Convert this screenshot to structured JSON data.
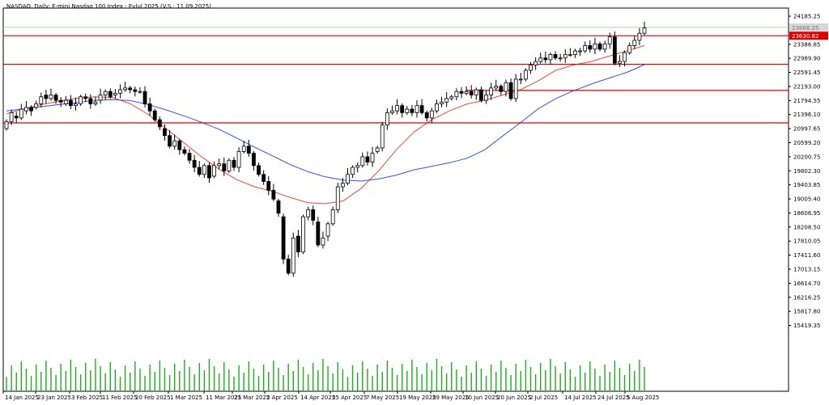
{
  "header": {
    "title": "NASDAQ, Daily:  E-mini Nasdaq 100 Index - Eylul 2025 (V.S.: 11.09.2025)"
  },
  "chart_data": {
    "type": "candlestick",
    "ylim": [
      15020.0,
      24185.0
    ],
    "y_ticks": [
      "24185.25",
      "23386.85",
      "22989.90",
      "22591.45",
      "22193.00",
      "21794.55",
      "21396.10",
      "20997.65",
      "20599.20",
      "20200.75",
      "19802.30",
      "19403.85",
      "19005.40",
      "18606.95",
      "18208.50",
      "17810.05",
      "17411.60",
      "17013.15",
      "16614.70",
      "16216.25",
      "15817.80",
      "15419.35"
    ],
    "x_labels": [
      "14 Jan 2025",
      "23 Jan 2025",
      "3 Feb 2025",
      "11 Feb 2025",
      "20 Feb 2025",
      "1 Mar 2025",
      "11 Mar 2025",
      "21 Mar 2025",
      "2 Apr 2025",
      "14 Apr 2025",
      "25 Apr 2025",
      "7 May 2025",
      "19 May 2025",
      "29 May 2025",
      "10 Jun 2025",
      "20 Jun 2025",
      "2 Jul 2025",
      "14 Jul 2025",
      "24 Jul 2025",
      "5 Aug 2025"
    ],
    "price_label": "23630.82",
    "last_price_label": "23866.25",
    "horizontal_levels": [
      23630.82,
      22820.0,
      22080.0,
      21160.0
    ],
    "ma_fast": [
      21420,
      21560,
      21680,
      21780,
      21860,
      21900,
      21880,
      21700,
      21400,
      21000,
      20600,
      20200,
      19850,
      19550,
      19350,
      19220,
      19050,
      18900,
      18870,
      18950,
      19300,
      19800,
      20400,
      20900,
      21250,
      21500,
      21700,
      21800,
      21950,
      22100,
      22350,
      22650,
      22800,
      22900,
      23050,
      23200,
      23350
    ],
    "ma_slow": [
      21500,
      21560,
      21620,
      21680,
      21740,
      21800,
      21820,
      21790,
      21680,
      21530,
      21360,
      21180,
      20980,
      20730,
      20470,
      20230,
      19980,
      19780,
      19630,
      19540,
      19510,
      19570,
      19680,
      19830,
      19930,
      20030,
      20160,
      20400,
      20790,
      21160,
      21560,
      21850,
      22070,
      22260,
      22430,
      22590,
      22810
    ],
    "series": [
      {
        "values": [
          21200,
          21450,
          21300,
          21550,
          21600,
          21500,
          21700,
          21900,
          21850,
          21950,
          21800,
          21750,
          21800,
          21650,
          21700,
          21900,
          21850,
          21700,
          21750,
          21950,
          22050,
          21900,
          22000,
          22100,
          22150,
          22100,
          22050,
          22050,
          21700,
          21500,
          21250,
          21050,
          20800,
          20500,
          20650,
          20400,
          20300,
          20100,
          19900,
          19700,
          19950,
          19600,
          19950,
          20000,
          19800,
          20100,
          19900,
          20350,
          20500,
          20300,
          19950,
          19700,
          19500,
          19250,
          19000,
          18600,
          17300,
          16900,
          17900,
          17500,
          18500,
          18700,
          18400,
          17700,
          17900,
          18300,
          18700,
          19350,
          19450,
          19700,
          19900,
          19950,
          20200,
          20050,
          20300,
          20450,
          21100,
          21450,
          21500,
          21650,
          21450,
          21550,
          21450,
          21650,
          21450,
          21300,
          21500,
          21700,
          21750,
          21850,
          21900,
          22050,
          22000,
          22050,
          21950,
          22100,
          21800,
          21950,
          22150,
          22200,
          22050,
          22300,
          21850,
          22400,
          22400,
          22650,
          22800,
          22900,
          23000,
          22950,
          23100,
          23000,
          23000,
          23100,
          23100,
          23200,
          23200,
          23350,
          23250,
          23400,
          23250,
          23400,
          23600,
          22850,
          22900,
          23150,
          23350,
          23500,
          23700,
          23850
        ]
      },
      {
        "values": [
          21000,
          21200,
          21350,
          21300,
          21500,
          21600,
          21600,
          21700,
          21950,
          21850,
          21950,
          21800,
          21700,
          21800,
          21650,
          21700,
          21900,
          21850,
          21700,
          21800,
          21950,
          22050,
          21950,
          22000,
          22100,
          22150,
          22100,
          22050,
          22050,
          21700,
          21500,
          21250,
          21000,
          20800,
          20500,
          20650,
          20400,
          20300,
          20100,
          19900,
          19700,
          19950,
          19650,
          19950,
          20000,
          19800,
          20100,
          19900,
          20350,
          20500,
          20300,
          19950,
          19700,
          19500,
          19250,
          18950,
          18500,
          17300,
          16900,
          17950,
          17500,
          18500,
          18700,
          18350,
          17700,
          17950,
          18300,
          18700,
          19350,
          19450,
          19700,
          19900,
          19950,
          20200,
          20050,
          20350,
          20450,
          21100,
          21450,
          21500,
          21650,
          21450,
          21550,
          21450,
          21650,
          21450,
          21300,
          21500,
          21700,
          21750,
          21850,
          21900,
          22050,
          22000,
          22050,
          21950,
          22100,
          21800,
          21950,
          22150,
          22200,
          22050,
          22300,
          21850,
          22400,
          22400,
          22650,
          22800,
          22900,
          23000,
          22950,
          23100,
          23000,
          23000,
          23100,
          23100,
          23200,
          23200,
          23350,
          23250,
          23400,
          23250,
          23400,
          23600,
          22850,
          22900,
          23150,
          23350,
          23500,
          23700
        ]
      }
    ]
  }
}
